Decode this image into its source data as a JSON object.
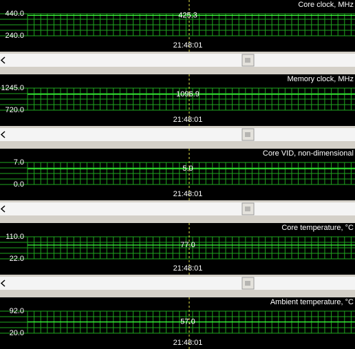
{
  "panels": [
    {
      "title": "Core clock, MHz",
      "max": "440.0",
      "min": "240.0",
      "current": "425.3",
      "time": "21:48:01"
    },
    {
      "title": "Memory clock, MHz",
      "max": "1245.0",
      "min": "720.0",
      "current": "1096.9",
      "time": "21:48:01"
    },
    {
      "title": "Core VID, non-dimensional",
      "max": "7.0",
      "min": "0.0",
      "current": "5.0",
      "time": "21:48:01"
    },
    {
      "title": "Core temperature, °C",
      "max": "110.0",
      "min": "22.0",
      "current": "77.0",
      "time": "21:48:01"
    },
    {
      "title": "Ambient temperature, °C",
      "max": "92.0",
      "min": "20.0",
      "current": "57.0",
      "time": "21:48:01"
    }
  ]
}
